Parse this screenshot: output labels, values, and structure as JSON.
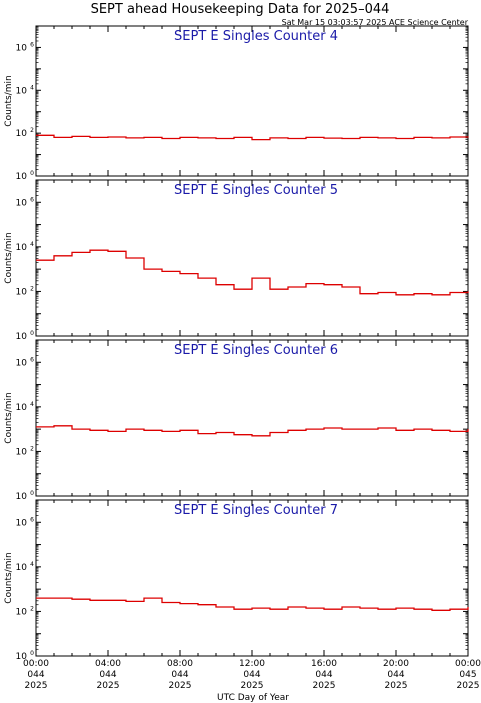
{
  "title": "SEPT ahead Housekeeping Data for 2025–044",
  "subtitle": "Sat Mar 15 03:03:57 2025 ACE Science Center",
  "colors": {
    "trace": "#dd0000",
    "panel_title": "#1a1aa8",
    "axis": "#000000"
  },
  "chart_data": {
    "type": "line",
    "step": true,
    "xlabel": "UTC Day of Year",
    "xlim": [
      0,
      24
    ],
    "x_ticks": [
      {
        "h": 0,
        "time": "00:00",
        "doy": "044",
        "year": "2025"
      },
      {
        "h": 4,
        "time": "04:00",
        "doy": "044",
        "year": "2025"
      },
      {
        "h": 8,
        "time": "08:00",
        "doy": "044",
        "year": "2025"
      },
      {
        "h": 12,
        "time": "12:00",
        "doy": "044",
        "year": "2025"
      },
      {
        "h": 16,
        "time": "16:00",
        "doy": "044",
        "year": "2025"
      },
      {
        "h": 20,
        "time": "20:00",
        "doy": "044",
        "year": "2025"
      },
      {
        "h": 24,
        "time": "00:00",
        "doy": "045",
        "year": "2025"
      }
    ],
    "y_scale": "log",
    "y_ticks": [
      {
        "exp": 0,
        "base": "10",
        "sup": "0"
      },
      {
        "exp": 2,
        "base": "10",
        "sup": "2"
      },
      {
        "exp": 4,
        "base": "10",
        "sup": "4"
      },
      {
        "exp": 6,
        "base": "10",
        "sup": "6"
      }
    ],
    "panels": [
      {
        "title": "SEPT E Singles Counter 4",
        "ylabel": "Counts/min",
        "ylim_log10": [
          0,
          7
        ],
        "x": [
          0,
          1,
          2,
          3,
          4,
          5,
          6,
          7,
          8,
          9,
          10,
          11,
          12,
          13,
          14,
          15,
          16,
          17,
          18,
          19,
          20,
          21,
          22,
          23,
          24
        ],
        "log10_values": [
          1.9,
          1.8,
          1.85,
          1.8,
          1.82,
          1.78,
          1.8,
          1.75,
          1.8,
          1.78,
          1.75,
          1.8,
          1.7,
          1.78,
          1.75,
          1.8,
          1.77,
          1.75,
          1.8,
          1.78,
          1.75,
          1.8,
          1.78,
          1.82,
          1.85
        ]
      },
      {
        "title": "SEPT E Singles Counter 5",
        "ylabel": "Counts/min",
        "ylim_log10": [
          0,
          7
        ],
        "x": [
          0,
          1,
          2,
          3,
          4,
          5,
          6,
          7,
          8,
          9,
          10,
          11,
          12,
          13,
          14,
          15,
          16,
          17,
          18,
          19,
          20,
          21,
          22,
          23,
          24
        ],
        "log10_values": [
          3.4,
          3.6,
          3.75,
          3.85,
          3.8,
          3.5,
          3.0,
          2.9,
          2.8,
          2.6,
          2.3,
          2.1,
          2.6,
          2.1,
          2.2,
          2.35,
          2.3,
          2.2,
          1.9,
          1.95,
          1.85,
          1.9,
          1.85,
          1.95,
          2.0
        ]
      },
      {
        "title": "SEPT E Singles Counter 6",
        "ylabel": "Counts/min",
        "ylim_log10": [
          0,
          7
        ],
        "x": [
          0,
          1,
          2,
          3,
          4,
          5,
          6,
          7,
          8,
          9,
          10,
          11,
          12,
          13,
          14,
          15,
          16,
          17,
          18,
          19,
          20,
          21,
          22,
          23,
          24
        ],
        "log10_values": [
          3.1,
          3.15,
          3.0,
          2.95,
          2.9,
          3.0,
          2.95,
          2.9,
          2.95,
          2.8,
          2.85,
          2.75,
          2.7,
          2.85,
          2.95,
          3.0,
          3.05,
          3.0,
          3.0,
          3.05,
          2.95,
          3.0,
          2.95,
          2.9,
          3.0
        ]
      },
      {
        "title": "SEPT E Singles Counter 7",
        "ylabel": "Counts/min",
        "ylim_log10": [
          0,
          7
        ],
        "x": [
          0,
          1,
          2,
          3,
          4,
          5,
          6,
          7,
          8,
          9,
          10,
          11,
          12,
          13,
          14,
          15,
          16,
          17,
          18,
          19,
          20,
          21,
          22,
          23,
          24
        ],
        "log10_values": [
          2.6,
          2.6,
          2.55,
          2.5,
          2.5,
          2.45,
          2.6,
          2.4,
          2.35,
          2.3,
          2.2,
          2.1,
          2.15,
          2.1,
          2.2,
          2.15,
          2.1,
          2.2,
          2.15,
          2.1,
          2.15,
          2.1,
          2.05,
          2.1,
          2.2
        ]
      }
    ]
  }
}
